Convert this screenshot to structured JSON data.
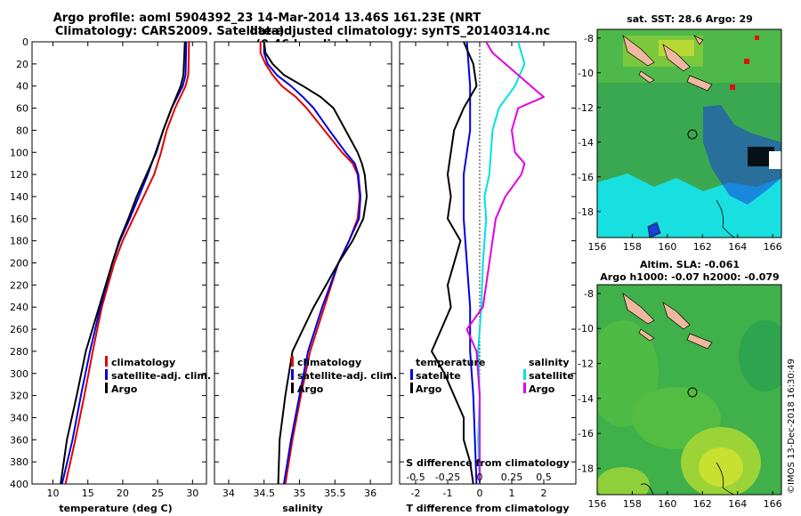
{
  "title_line1": "Argo profile: aoml 5904392_23 14-Mar-2014 13.46S 161.23E (NRT data)",
  "title_line2": "Climatology: CARS2009. Satellite-adjusted climatology: synTS_20140314.nc (0.46d earlier)",
  "stamp": "©IMOS 13-Dec-2018 16:30:49",
  "colors": {
    "climatology": "#e00000",
    "satellite": "#0000e0",
    "argo": "#000000",
    "sal_sat": "#00e0e0",
    "sal_argo": "#e000e0"
  },
  "chart_data": [
    {
      "type": "line",
      "name": "temperature-panel",
      "xlabel": "temperature (deg C)",
      "ylabel": "",
      "xlim": [
        7,
        32
      ],
      "ylim": [
        0,
        400
      ],
      "xticks": [
        10,
        15,
        20,
        25,
        30
      ],
      "yticks": [
        0,
        20,
        40,
        60,
        80,
        100,
        120,
        140,
        160,
        180,
        200,
        220,
        240,
        260,
        280,
        300,
        320,
        340,
        360,
        380,
        400
      ],
      "legend": [
        "climatology",
        "satellite-adj. clim.",
        "Argo"
      ],
      "series": [
        {
          "name": "climatology",
          "color": "#e00000",
          "depth": [
            0,
            30,
            40,
            60,
            80,
            100,
            120,
            140,
            160,
            180,
            200,
            240,
            280,
            320,
            360,
            400
          ],
          "values": [
            29.5,
            29.4,
            29.0,
            27.5,
            26.3,
            25.5,
            24.5,
            23.0,
            21.5,
            20.0,
            18.8,
            17.0,
            15.7,
            14.5,
            13.2,
            11.8
          ]
        },
        {
          "name": "satellite-adj. clim.",
          "color": "#0000e0",
          "depth": [
            0,
            30,
            40,
            60,
            80,
            100,
            120,
            140,
            160,
            180,
            200,
            240,
            280,
            320,
            360,
            400
          ],
          "values": [
            29.1,
            29.0,
            28.6,
            27.0,
            25.8,
            24.7,
            23.6,
            22.3,
            21.0,
            19.6,
            18.5,
            16.8,
            15.3,
            14.0,
            12.8,
            11.3
          ]
        },
        {
          "name": "Argo",
          "color": "#000000",
          "depth": [
            0,
            30,
            40,
            60,
            80,
            100,
            120,
            140,
            160,
            180,
            200,
            240,
            280,
            320,
            360,
            400
          ],
          "values": [
            28.9,
            28.7,
            28.3,
            27.0,
            25.8,
            24.8,
            23.4,
            22.0,
            20.8,
            19.5,
            18.5,
            16.6,
            14.7,
            13.4,
            12.0,
            11.1
          ]
        }
      ]
    },
    {
      "type": "line",
      "name": "salinity-panel",
      "xlabel": "salinity",
      "ylabel": "",
      "xlim": [
        33.8,
        36.3
      ],
      "ylim": [
        0,
        400
      ],
      "xticks": [
        34,
        34.5,
        35,
        35.5,
        36
      ],
      "legend": [
        "climatology",
        "satellite-adj. clim.",
        "Argo"
      ],
      "series": [
        {
          "name": "climatology",
          "color": "#e00000",
          "depth": [
            0,
            10,
            20,
            30,
            40,
            50,
            60,
            80,
            100,
            110,
            120,
            140,
            160,
            180,
            200,
            240,
            280,
            320,
            360,
            400
          ],
          "values": [
            34.45,
            34.45,
            34.52,
            34.62,
            34.75,
            34.95,
            35.1,
            35.35,
            35.6,
            35.75,
            35.82,
            35.85,
            35.82,
            35.7,
            35.55,
            35.35,
            35.15,
            35.02,
            34.9,
            34.8
          ]
        },
        {
          "name": "satellite-adj. clim.",
          "color": "#0000e0",
          "depth": [
            0,
            10,
            20,
            30,
            40,
            50,
            60,
            80,
            100,
            110,
            120,
            140,
            160,
            180,
            200,
            240,
            280,
            320,
            360,
            400
          ],
          "values": [
            34.5,
            34.5,
            34.55,
            34.68,
            34.88,
            35.05,
            35.2,
            35.42,
            35.65,
            35.78,
            35.83,
            35.86,
            35.84,
            35.7,
            35.55,
            35.32,
            35.12,
            35.0,
            34.88,
            34.78
          ]
        },
        {
          "name": "Argo",
          "color": "#000000",
          "depth": [
            0,
            10,
            20,
            30,
            40,
            50,
            60,
            80,
            100,
            110,
            120,
            140,
            160,
            180,
            200,
            240,
            280,
            320,
            360,
            400
          ],
          "values": [
            34.5,
            34.52,
            34.62,
            34.78,
            35.05,
            35.3,
            35.48,
            35.65,
            35.82,
            35.88,
            35.92,
            35.95,
            35.9,
            35.75,
            35.55,
            35.2,
            34.9,
            34.8,
            34.72,
            34.7
          ]
        }
      ]
    },
    {
      "type": "line",
      "name": "difference-panel",
      "xlabel": "T difference from climatology",
      "xlabel_top": "S difference from climatology",
      "xlim": [
        -2.5,
        3.0
      ],
      "ylim": [
        0,
        400
      ],
      "xticks": [
        -2,
        -1,
        0,
        1,
        2
      ],
      "s_ticks": [
        {
          "label": "-0.5",
          "x": -2.0
        },
        {
          "label": "-0.25",
          "x": -1.0
        },
        {
          "label": "0",
          "x": 0
        },
        {
          "label": "0.25",
          "x": 1.0
        },
        {
          "label": "0.5",
          "x": 2.0
        }
      ],
      "legend_left_title": "temperature",
      "legend_right_title": "salinity",
      "legend_left": [
        "satellite",
        "Argo"
      ],
      "legend_right": [
        "satellite",
        "Argo"
      ],
      "series": [
        {
          "name": "T satellite",
          "color": "#0000e0",
          "depth": [
            0,
            40,
            80,
            120,
            160,
            200,
            240,
            280,
            320,
            360,
            400
          ],
          "values": [
            -0.4,
            -0.3,
            -0.3,
            -0.5,
            -0.5,
            -0.4,
            -0.3,
            -0.3,
            -0.2,
            -0.15,
            -0.1
          ]
        },
        {
          "name": "T Argo",
          "color": "#000000",
          "depth": [
            0,
            20,
            40,
            60,
            80,
            100,
            120,
            140,
            160,
            180,
            200,
            220,
            240,
            260,
            280,
            300,
            320,
            340,
            360,
            380,
            400
          ],
          "values": [
            -0.5,
            -0.2,
            -0.1,
            -0.5,
            -0.8,
            -0.9,
            -1.0,
            -0.9,
            -1.0,
            -0.6,
            -0.8,
            -1.0,
            -0.9,
            -1.2,
            -1.5,
            -1.1,
            -0.8,
            -0.5,
            -0.5,
            -0.3,
            -0.2
          ]
        },
        {
          "name": "S satellite",
          "color": "#00e0e0",
          "depth": [
            0,
            20,
            40,
            60,
            80,
            100,
            120,
            140,
            160,
            200,
            240,
            280,
            320,
            360,
            400
          ],
          "values": [
            1.2,
            1.4,
            1.1,
            0.6,
            0.4,
            0.35,
            0.3,
            0.15,
            0.2,
            0.1,
            0.05,
            -0.05,
            0.0,
            -0.05,
            0.0
          ]
        },
        {
          "name": "S Argo",
          "color": "#e000e0",
          "depth": [
            0,
            10,
            20,
            30,
            40,
            50,
            60,
            80,
            100,
            110,
            120,
            140,
            160,
            200,
            240,
            260,
            280,
            320,
            360,
            400
          ],
          "values": [
            0.2,
            0.4,
            0.8,
            1.2,
            1.6,
            2.0,
            1.2,
            1.0,
            1.1,
            1.4,
            1.3,
            0.8,
            0.5,
            0.3,
            0.1,
            -0.4,
            -0.1,
            0.0,
            0.0,
            0.0
          ]
        }
      ]
    },
    {
      "type": "heatmap",
      "name": "sst-map",
      "title": "sat. SST: 28.6 Argo: 29",
      "xlim": [
        156,
        166.5
      ],
      "ylim": [
        -19.5,
        -7.5
      ],
      "xticks": [
        156,
        158,
        160,
        162,
        164,
        166
      ],
      "yticks": [
        -8,
        -10,
        -12,
        -14,
        -16,
        -18
      ],
      "marker": {
        "lon": 161.23,
        "lat": -13.46
      }
    },
    {
      "type": "heatmap",
      "name": "sla-map",
      "title": "Altim. SLA: -0.061",
      "subtitle": "Argo h1000: -0.07 h2000: -0.079",
      "xlim": [
        156,
        166.5
      ],
      "ylim": [
        -19.5,
        -7.5
      ],
      "xticks": [
        156,
        158,
        160,
        162,
        164,
        166
      ],
      "yticks": [
        -8,
        -10,
        -12,
        -14,
        -16,
        -18
      ],
      "marker": {
        "lon": 161.23,
        "lat": -13.46
      }
    }
  ]
}
